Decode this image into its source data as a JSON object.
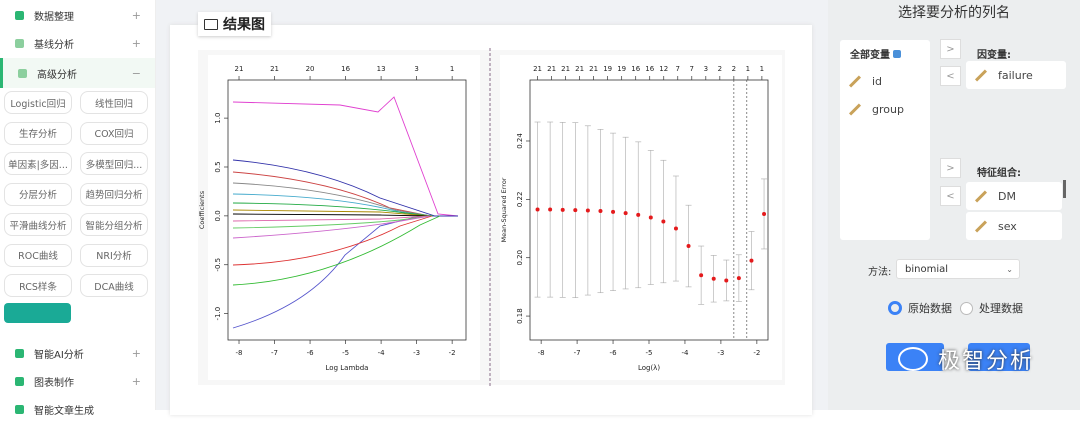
{
  "sidebar": {
    "menu": [
      {
        "label": "数据整理",
        "toggle": "+"
      },
      {
        "label": "基线分析",
        "toggle": "+"
      },
      {
        "label": "高级分析",
        "toggle": "−"
      }
    ],
    "buttons": [
      "Logistic回归",
      "线性回归",
      "生存分析",
      "COX回归",
      "单因素|多因...",
      "多模型回归...",
      "分层分析",
      "趋势回归分析",
      "平滑曲线分析",
      "智能分组分析",
      "ROC曲线",
      "NRI分析",
      "RCS样条",
      "DCA曲线"
    ],
    "menu_bottom": [
      {
        "label": "智能AI分析",
        "toggle": "+"
      },
      {
        "label": "图表制作",
        "toggle": "+"
      },
      {
        "label": "智能文章生成"
      }
    ]
  },
  "card_title": "结果图",
  "chart_data": [
    {
      "type": "lasso-path",
      "x_label": "Log Lambda",
      "y_label": "Coefficients",
      "xlim": [
        -8.31,
        -1.61
      ],
      "xticks": [
        -8,
        -7,
        -6,
        -5,
        -4,
        -3,
        -2
      ],
      "ylim": [
        -1.27,
        1.39
      ],
      "yticks": [
        {
          "value": 1,
          "label": "1.0"
        },
        0.5,
        {
          "value": 0,
          "label": "0.0"
        },
        -0.5,
        {
          "value": -1,
          "label": "-1.0"
        }
      ],
      "top_ticks": [
        {
          "value": -8,
          "label": "21"
        },
        {
          "value": -7,
          "label": "21"
        },
        {
          "value": -6,
          "label": "20"
        },
        {
          "value": -5,
          "label": "16"
        },
        {
          "value": -4,
          "label": "13"
        },
        {
          "value": -3,
          "label": "3"
        },
        {
          "value": -2,
          "label": "1"
        }
      ]
    },
    {
      "type": "cv-error",
      "x_label": "Log(λ)",
      "y_label": "Mean-Squared Error",
      "color": "#e41a1c",
      "xlim": [
        -8.31,
        -1.69
      ],
      "xticks": [
        -8,
        -7,
        -6,
        -5,
        -4,
        -3,
        -2
      ],
      "ylim": [
        0.1718,
        0.2609
      ],
      "yticks": [
        0.18,
        {
          "value": 0.2,
          "label": "0.20"
        },
        0.22,
        0.24
      ],
      "top_ticks": [
        {
          "value": -8.1,
          "label": "21"
        },
        {
          "value": -7.71,
          "label": "21"
        },
        {
          "value": -7.32,
          "label": "21"
        },
        {
          "value": -6.93,
          "label": "21"
        },
        {
          "value": -6.54,
          "label": "21"
        },
        {
          "value": -6.15,
          "label": "19"
        },
        {
          "value": -5.76,
          "label": "19"
        },
        {
          "value": -5.37,
          "label": "16"
        },
        {
          "value": -4.98,
          "label": "16"
        },
        {
          "value": -4.59,
          "label": "12"
        },
        {
          "value": -4.2,
          "label": "7"
        },
        {
          "value": -3.81,
          "label": "7"
        },
        {
          "value": -3.42,
          "label": "3"
        },
        {
          "value": -3.03,
          "label": "2"
        },
        {
          "value": -2.64,
          "label": "2"
        },
        {
          "value": -2.25,
          "label": "1"
        },
        {
          "value": -1.86,
          "label": "1"
        }
      ],
      "x": [
        -8.1,
        -7.75,
        -7.4,
        -7.05,
        -6.7,
        -6.35,
        -6.0,
        -5.65,
        -5.3,
        -4.95,
        -4.6,
        -4.25,
        -3.9,
        -3.55,
        -3.2,
        -2.85,
        -2.5,
        -2.15,
        -1.8
      ],
      "values": [
        0.2165,
        0.2165,
        0.2164,
        0.2163,
        0.2162,
        0.216,
        0.2157,
        0.2153,
        0.2147,
        0.2138,
        0.2124,
        0.21,
        0.204,
        0.194,
        0.1928,
        0.1922,
        0.193,
        0.199,
        0.215
      ],
      "errors": [
        0.03,
        0.03,
        0.03,
        0.03,
        0.029,
        0.028,
        0.027,
        0.026,
        0.025,
        0.023,
        0.021,
        0.018,
        0.014,
        0.01,
        0.008,
        0.007,
        0.008,
        0.01,
        0.012
      ],
      "vlines": [
        -2.64,
        -2.28
      ]
    }
  ],
  "panel": {
    "title": "选择要分析的列名",
    "all_vars": {
      "header": "全部变量",
      "items": [
        "id",
        "group"
      ]
    },
    "dependent": {
      "header": "因变量:",
      "items": [
        "failure"
      ]
    },
    "features": {
      "header": "特征组合:",
      "items": [
        "DM",
        "sex"
      ]
    },
    "arrows": [
      ">",
      "<",
      ">",
      "<"
    ],
    "method_label": "方法:",
    "method": "binomial",
    "radios": [
      "原始数据",
      "处理数据"
    ]
  },
  "watermark": "极智分析"
}
